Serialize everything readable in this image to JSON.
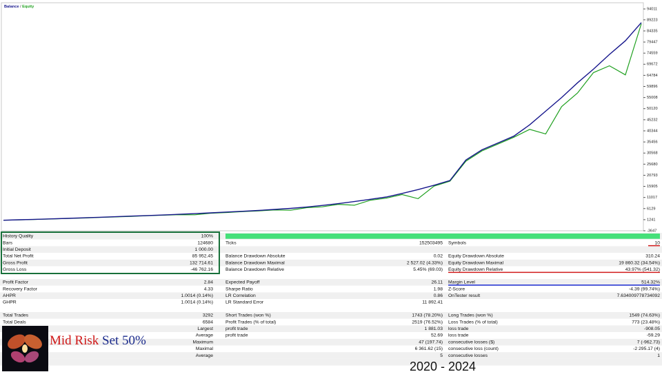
{
  "chart_data": {
    "type": "line",
    "legend_separator": "/",
    "series": [
      {
        "name": "Balance",
        "color": "#16168c",
        "values": [
          1000,
          1200,
          1400,
          1600,
          1800,
          2050,
          2300,
          2550,
          2800,
          3050,
          3300,
          3600,
          3900,
          4250,
          4600,
          4950,
          5300,
          5750,
          6200,
          6800,
          7500,
          8300,
          9200,
          10200,
          11200,
          12800,
          14500,
          16400,
          18500,
          27500,
          32000,
          35000,
          38000,
          43000,
          49000,
          55000,
          61500,
          67500,
          74000,
          80000,
          88000
        ]
      },
      {
        "name": "Equity",
        "color": "#1fa01f",
        "values": [
          1000,
          1150,
          1350,
          1550,
          1750,
          1950,
          2200,
          2450,
          2700,
          2950,
          3200,
          3450,
          3400,
          4100,
          4400,
          4800,
          5100,
          5500,
          5400,
          6500,
          6900,
          8000,
          7600,
          9800,
          10700,
          12300,
          10500,
          16000,
          18200,
          27000,
          31500,
          34500,
          37500,
          41000,
          39000,
          51000,
          57000,
          66000,
          69000,
          65000,
          87500
        ]
      }
    ],
    "ylim": [
      -3647,
      96744
    ],
    "yticks": [
      -3647,
      1241,
      6129,
      11017,
      15905,
      20793,
      25680,
      30568,
      35456,
      40344,
      45232,
      50120,
      55008,
      59896,
      64784,
      69672,
      74559,
      79447,
      84335,
      89223,
      94011
    ]
  },
  "report": {
    "blocks": [
      [
        [
          {
            "label": "History Quality",
            "value": "100%"
          },
          null,
          null
        ],
        [
          {
            "label": "Bars",
            "value": "124680"
          },
          {
            "label": "Ticks",
            "value": "152503495"
          },
          {
            "label": "Symbols",
            "value": "10"
          }
        ],
        [
          {
            "label": "Initial Deposit",
            "value": "1 000.00"
          },
          null,
          null
        ],
        [
          {
            "label": "Total Net Profit",
            "value": "85 952.45"
          },
          {
            "label": "Balance Drawdown Absolute",
            "value": "0.02"
          },
          {
            "label": "Equity Drawdown Absolute",
            "value": "310.24"
          }
        ],
        [
          {
            "label": "Gross Profit",
            "value": "132 714.61"
          },
          {
            "label": "Balance Drawdown Maximal",
            "value": "2 527.02 (4.33%)"
          },
          {
            "label": "Equity Drawdown Maximal",
            "value": "19 860.32 (34.54%)"
          }
        ],
        [
          {
            "label": "Gross Loss",
            "value": "-46 762.16"
          },
          {
            "label": "Balance Drawdown Relative",
            "value": "5.45% (69.03)"
          },
          {
            "label": "Equity Drawdown Relative",
            "value": "43.97% (541.32)"
          }
        ]
      ],
      [
        [
          {
            "label": "Profit Factor",
            "value": "2.84"
          },
          {
            "label": "Expected Payoff",
            "value": "26.11"
          },
          {
            "label": "Margin Level",
            "value": "514.32%"
          }
        ],
        [
          {
            "label": "Recovery Factor",
            "value": "4.33"
          },
          {
            "label": "Sharpe Ratio",
            "value": "1.98"
          },
          {
            "label": "Z-Score",
            "value": "-4.39 (99.74%)"
          }
        ],
        [
          {
            "label": "AHPR",
            "value": "1.0014 (0.14%)"
          },
          {
            "label": "LR Correlation",
            "value": "0.86"
          },
          {
            "label": "OnTester result",
            "value": "7.634009778734092"
          }
        ],
        [
          {
            "label": "GHPR",
            "value": "1.0014 (0.14%)"
          },
          {
            "label": "LR Standard Error",
            "value": "11 892.41"
          },
          null
        ]
      ],
      [
        [
          {
            "label": "Total Trades",
            "value": "3292"
          },
          {
            "label": "Short Trades (won %)",
            "value": "1743 (78.20%)"
          },
          {
            "label": "Long Trades (won %)",
            "value": "1549 (74.63%)"
          }
        ],
        [
          {
            "label": "Total Deals",
            "value": "6584"
          },
          {
            "label": "Profit Trades (% of total)",
            "value": "2519 (76.52%)"
          },
          {
            "label": "Loss Trades (% of total)",
            "value": "773 (23.48%)"
          }
        ],
        [
          {
            "value": "Largest"
          },
          {
            "label": "profit trade",
            "value": "1 881.03"
          },
          {
            "label": "loss trade",
            "value": "-908.05"
          }
        ],
        [
          {
            "value": "Average"
          },
          {
            "label": "profit trade",
            "value": "52.69"
          },
          {
            "label": "loss trade",
            "value": "-59.29"
          }
        ],
        [
          {
            "value": "Maximum"
          },
          {
            "value": "47 (197.74)"
          },
          {
            "label": "consecutive losses ($)",
            "value": "7 (-962.73)"
          }
        ],
        [
          {
            "value": "Maximal"
          },
          {
            "value": "6 361.62 (15)"
          },
          {
            "label": "consecutive loss (count)",
            "value": "-2 295.17 (4)"
          }
        ],
        [
          {
            "value": "Average"
          },
          {
            "value": "5"
          },
          {
            "label": "consecutive losses",
            "value": "1"
          }
        ]
      ]
    ]
  },
  "caption": {
    "title_a": "Mid Risk",
    "title_b": "Set 50%",
    "years": "2020 - 2024"
  }
}
